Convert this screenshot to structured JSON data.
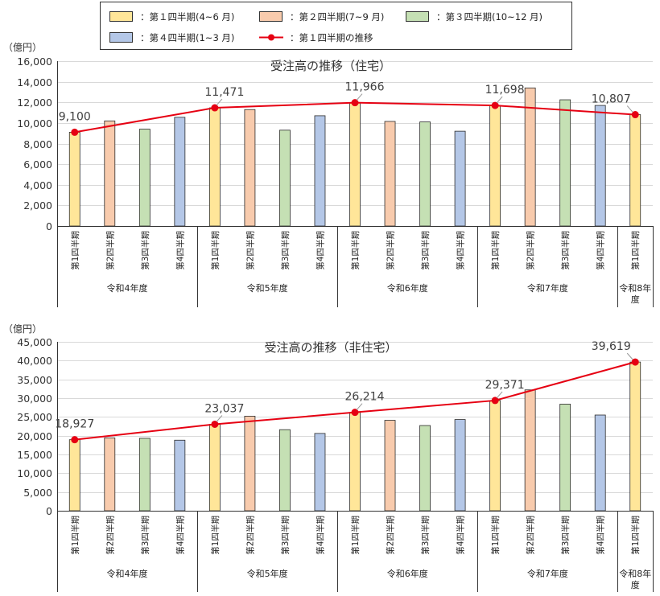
{
  "legend": {
    "items": [
      {
        "label": "：第１四半期(4~6 月)",
        "color": "#ffe699",
        "kind": "box"
      },
      {
        "label": "：第２四半期(7~9 月)",
        "color": "#f8cbad",
        "kind": "box"
      },
      {
        "label": "：第３四半期(10~12 月)",
        "color": "#c5e0b4",
        "kind": "box"
      },
      {
        "label": "：第４四半期(1~3 月)",
        "color": "#b4c7e7",
        "kind": "box"
      },
      {
        "label": "：第１四半期の推移",
        "color": "#e60012",
        "kind": "line"
      }
    ]
  },
  "chart_data": [
    {
      "type": "bar",
      "title": "受注高の推移（住宅）",
      "unit_label": "（億円）",
      "ylim": [
        0,
        16000
      ],
      "yticks": [
        "0",
        "2,000",
        "4,000",
        "6,000",
        "8,000",
        "10,000",
        "12,000",
        "14,000",
        "16,000"
      ],
      "categories": [
        "第1四半期",
        "第2四半期",
        "第3四半期",
        "第4四半期",
        "第1四半期",
        "第2四半期",
        "第3四半期",
        "第4四半期",
        "第1四半期",
        "第2四半期",
        "第3四半期",
        "第4四半期",
        "第1四半期",
        "第2四半期",
        "第3四半期",
        "第4四半期",
        "第1四半期"
      ],
      "quarter_index": [
        0,
        1,
        2,
        3,
        0,
        1,
        2,
        3,
        0,
        1,
        2,
        3,
        0,
        1,
        2,
        3,
        0
      ],
      "groups": [
        {
          "label": "令和4年度",
          "count": 4
        },
        {
          "label": "令和5年度",
          "count": 4
        },
        {
          "label": "令和6年度",
          "count": 4
        },
        {
          "label": "令和7年度",
          "count": 4
        },
        {
          "label": "令和8年度",
          "count": 1
        }
      ],
      "values": [
        9100,
        10200,
        9400,
        10550,
        11471,
        11300,
        9300,
        10700,
        11966,
        10150,
        10100,
        9200,
        11698,
        13400,
        12250,
        11700,
        10807
      ],
      "trend": {
        "indices": [
          0,
          4,
          8,
          12,
          16
        ],
        "values": [
          9100,
          11471,
          11966,
          11698,
          10807
        ],
        "labels": [
          "9,100",
          "11,471",
          "11,966",
          "11,698",
          "10,807"
        ],
        "color": "#e60012"
      },
      "grid": true
    },
    {
      "type": "bar",
      "title": "受注高の推移（非住宅）",
      "unit_label": "（億円）",
      "ylim": [
        0,
        45000
      ],
      "yticks": [
        "0",
        "5,000",
        "10,000",
        "15,000",
        "20,000",
        "25,000",
        "30,000",
        "35,000",
        "40,000",
        "45,000"
      ],
      "categories": [
        "第1四半期",
        "第2四半期",
        "第3四半期",
        "第4四半期",
        "第1四半期",
        "第2四半期",
        "第3四半期",
        "第4四半期",
        "第1四半期",
        "第2四半期",
        "第3四半期",
        "第4四半期",
        "第1四半期",
        "第2四半期",
        "第3四半期",
        "第4四半期",
        "第1四半期"
      ],
      "quarter_index": [
        0,
        1,
        2,
        3,
        0,
        1,
        2,
        3,
        0,
        1,
        2,
        3,
        0,
        1,
        2,
        3,
        0
      ],
      "groups": [
        {
          "label": "令和4年度",
          "count": 4
        },
        {
          "label": "令和5年度",
          "count": 4
        },
        {
          "label": "令和6年度",
          "count": 4
        },
        {
          "label": "令和7年度",
          "count": 4
        },
        {
          "label": "令和8年度",
          "count": 1
        }
      ],
      "values": [
        18927,
        19400,
        19300,
        18800,
        23037,
        25200,
        21600,
        20600,
        26214,
        24100,
        22700,
        24300,
        29371,
        32200,
        28400,
        25500,
        39619
      ],
      "trend": {
        "indices": [
          0,
          4,
          8,
          12,
          16
        ],
        "values": [
          18927,
          23037,
          26214,
          29371,
          39619
        ],
        "labels": [
          "18,927",
          "23,037",
          "26,214",
          "29,371",
          "39,619"
        ],
        "color": "#e60012"
      },
      "grid": true
    }
  ]
}
